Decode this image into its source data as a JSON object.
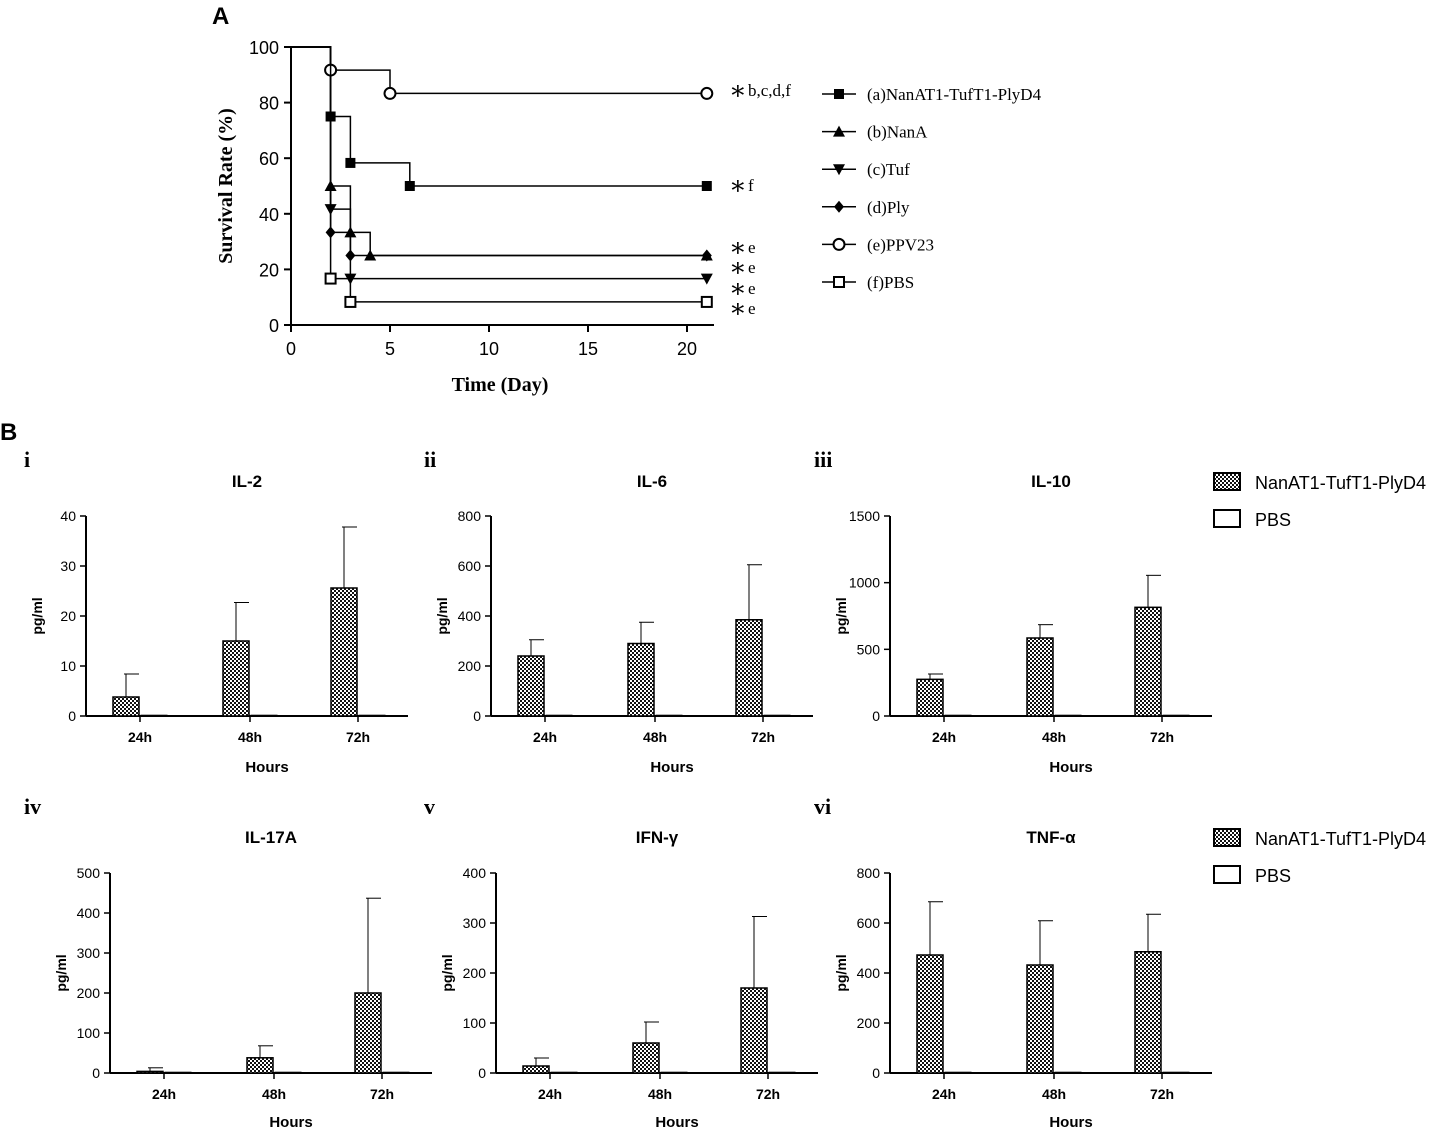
{
  "figure": {
    "panel_a_label": "A",
    "panel_b_label": "B"
  },
  "chart_data": [
    {
      "id": "survival",
      "type": "line",
      "subtype": "kaplan-meier",
      "xlabel": "Time (Day)",
      "ylabel": "Survival Rate (%)",
      "xlim": [
        0,
        21.5
      ],
      "ylim": [
        0,
        100
      ],
      "xticks": [
        0,
        5,
        10,
        15,
        20
      ],
      "yticks": [
        0,
        20,
        40,
        60,
        80,
        100
      ],
      "series": [
        {
          "name": "(a)NanAT1-TufT1-PlyD4",
          "marker": "square-filled",
          "steps": [
            [
              0,
              100
            ],
            [
              2,
              75
            ],
            [
              3,
              58.3
            ],
            [
              6,
              50
            ],
            [
              21,
              50
            ]
          ],
          "markers": [
            [
              2,
              75
            ],
            [
              3,
              58.3
            ],
            [
              6,
              50
            ],
            [
              21,
              50
            ]
          ]
        },
        {
          "name": "(b)NanA",
          "marker": "triangle-up",
          "steps": [
            [
              0,
              100
            ],
            [
              2,
              50
            ],
            [
              3,
              33.3
            ],
            [
              4,
              25
            ],
            [
              21,
              25
            ]
          ],
          "markers": [
            [
              2,
              50
            ],
            [
              3,
              33.3
            ],
            [
              4,
              25
            ],
            [
              21,
              25
            ]
          ]
        },
        {
          "name": "(c)Tuf",
          "marker": "triangle-down",
          "steps": [
            [
              0,
              100
            ],
            [
              2,
              41.7
            ],
            [
              3,
              16.7
            ],
            [
              21,
              16.7
            ]
          ],
          "markers": [
            [
              2,
              41.7
            ],
            [
              3,
              16.7
            ],
            [
              21,
              16.7
            ]
          ]
        },
        {
          "name": "(d)Ply",
          "marker": "diamond",
          "steps": [
            [
              0,
              100
            ],
            [
              2,
              33.3
            ],
            [
              3,
              25
            ],
            [
              21,
              25
            ]
          ],
          "markers": [
            [
              2,
              33.3
            ],
            [
              3,
              25
            ],
            [
              21,
              25
            ]
          ]
        },
        {
          "name": "(e)PPV23",
          "marker": "circle-open",
          "steps": [
            [
              0,
              100
            ],
            [
              2,
              91.7
            ],
            [
              5,
              83.3
            ],
            [
              21,
              83.3
            ]
          ],
          "markers": [
            [
              2,
              91.7
            ],
            [
              5,
              83.3
            ],
            [
              21,
              83.3
            ]
          ]
        },
        {
          "name": "(f)PBS",
          "marker": "square-open",
          "steps": [
            [
              0,
              100
            ],
            [
              2,
              16.7
            ],
            [
              3,
              8.3
            ],
            [
              21,
              8.3
            ]
          ],
          "markers": [
            [
              2,
              16.7
            ],
            [
              3,
              8.3
            ],
            [
              21,
              8.3
            ]
          ]
        }
      ],
      "annotations": [
        "b,c,d,f",
        "f",
        "e",
        "e",
        "e",
        "e"
      ]
    },
    {
      "id": "cytokines",
      "type": "bar",
      "categories": [
        "24h",
        "48h",
        "72h"
      ],
      "xlabel": "Hours",
      "ylabel": "pg/ml",
      "legend": [
        "NanAT1-TufT1-PlyD4",
        "PBS"
      ],
      "panels": [
        {
          "numeral": "i",
          "title": "IL-2",
          "ylim": [
            0,
            40
          ],
          "yticks": [
            0,
            10,
            20,
            30,
            40
          ],
          "vaccine": [
            3.8,
            15,
            25.6
          ],
          "vaccine_err": [
            4.6,
            7.7,
            12.2
          ],
          "pbs": [
            0,
            0,
            0
          ]
        },
        {
          "numeral": "ii",
          "title": "IL-6",
          "ylim": [
            0,
            800
          ],
          "yticks": [
            0,
            200,
            400,
            600,
            800
          ],
          "vaccine": [
            240,
            290,
            385
          ],
          "vaccine_err": [
            65,
            85,
            220
          ],
          "pbs": [
            0,
            0,
            3
          ]
        },
        {
          "numeral": "iii",
          "title": "IL-10",
          "ylim": [
            0,
            1500
          ],
          "yticks": [
            0,
            500,
            1000,
            1500
          ],
          "vaccine": [
            275,
            585,
            815
          ],
          "vaccine_err": [
            40,
            100,
            240
          ],
          "pbs": [
            0,
            0,
            0
          ]
        },
        {
          "numeral": "iv",
          "title": "IL-17A",
          "ylim": [
            0,
            500
          ],
          "yticks": [
            0,
            100,
            200,
            300,
            400,
            500
          ],
          "vaccine": [
            4,
            38,
            200
          ],
          "vaccine_err": [
            9,
            30,
            237
          ],
          "pbs": [
            0,
            0,
            0
          ]
        },
        {
          "numeral": "v",
          "title": "IFN-γ",
          "ylim": [
            0,
            400
          ],
          "yticks": [
            0,
            100,
            200,
            300,
            400
          ],
          "vaccine": [
            14,
            60,
            170
          ],
          "vaccine_err": [
            16,
            42,
            143
          ],
          "pbs": [
            0,
            0,
            0
          ]
        },
        {
          "numeral": "vi",
          "title": "TNF-α",
          "ylim": [
            0,
            800
          ],
          "yticks": [
            0,
            200,
            400,
            600,
            800
          ],
          "vaccine": [
            472,
            432,
            485
          ],
          "vaccine_err": [
            213,
            177,
            150
          ],
          "pbs": [
            3,
            3,
            0
          ]
        }
      ]
    }
  ]
}
